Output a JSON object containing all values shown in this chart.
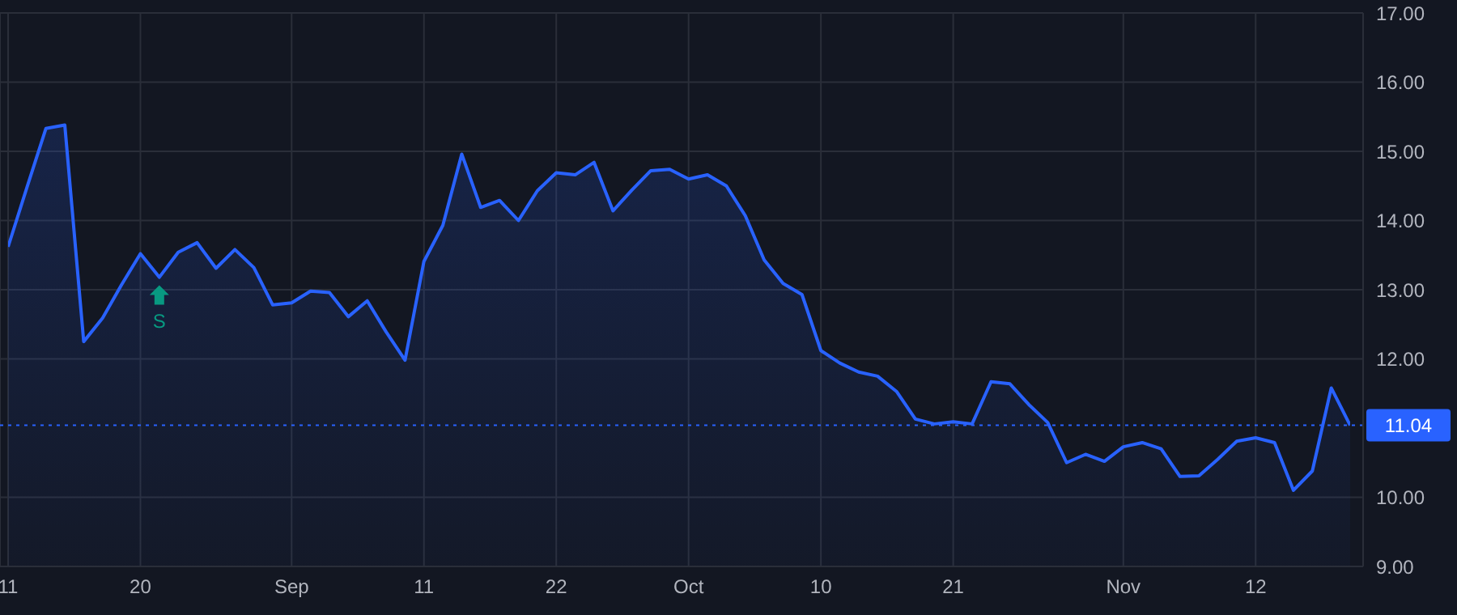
{
  "chart_data": {
    "type": "area",
    "categories": [
      "11",
      null,
      null,
      null,
      null,
      null,
      null,
      "20",
      null,
      null,
      null,
      null,
      null,
      null,
      null,
      "Sep",
      null,
      null,
      null,
      null,
      null,
      null,
      "11",
      null,
      null,
      null,
      null,
      null,
      null,
      "22",
      null,
      null,
      null,
      null,
      null,
      null,
      "Oct",
      null,
      null,
      null,
      null,
      null,
      null,
      "10",
      null,
      null,
      null,
      null,
      null,
      null,
      "21",
      null,
      null,
      null,
      null,
      null,
      null,
      null,
      null,
      "Nov",
      null,
      null,
      null,
      null,
      null,
      null,
      "12",
      null,
      null,
      null,
      null,
      null
    ],
    "series": [
      {
        "color": "#2962ff",
        "values": [
          13.62,
          14.48,
          15.33,
          15.38,
          12.25,
          12.59,
          13.07,
          13.52,
          13.18,
          13.54,
          13.68,
          13.31,
          13.58,
          13.32,
          12.78,
          12.81,
          12.98,
          12.96,
          12.61,
          12.84,
          12.39,
          11.98,
          13.41,
          13.93,
          14.96,
          14.19,
          14.29,
          14.0,
          14.43,
          14.69,
          14.66,
          14.84,
          14.14,
          14.44,
          14.72,
          14.74,
          14.6,
          14.66,
          14.5,
          14.07,
          13.43,
          13.09,
          12.93,
          12.12,
          11.94,
          11.81,
          11.75,
          11.53,
          11.13,
          11.06,
          11.09,
          11.06,
          11.67,
          11.64,
          11.34,
          11.08,
          10.5,
          10.62,
          10.52,
          10.73,
          10.79,
          10.7,
          10.3,
          10.31,
          10.55,
          10.81,
          10.86,
          10.79,
          10.1,
          10.38,
          11.58,
          11.04
        ]
      }
    ],
    "ylim": [
      9,
      17
    ],
    "yticks": [
      {
        "value": 9,
        "label": "9.00"
      },
      {
        "value": 10,
        "label": "10.00"
      },
      {
        "value": 12,
        "label": "12.00"
      },
      {
        "value": 13,
        "label": "13.00"
      },
      {
        "value": 14,
        "label": "14.00"
      },
      {
        "value": 15,
        "label": "15.00"
      },
      {
        "value": 16,
        "label": "16.00"
      },
      {
        "value": 17,
        "label": "17.00"
      }
    ],
    "grid": true,
    "ref_lines": [
      {
        "axis": "y",
        "value": 11.04,
        "label": "11.04",
        "color": "#2962ff",
        "line_style": "dotted"
      }
    ],
    "annotations": [
      {
        "text": "S",
        "y": 13.18
      }
    ]
  }
}
